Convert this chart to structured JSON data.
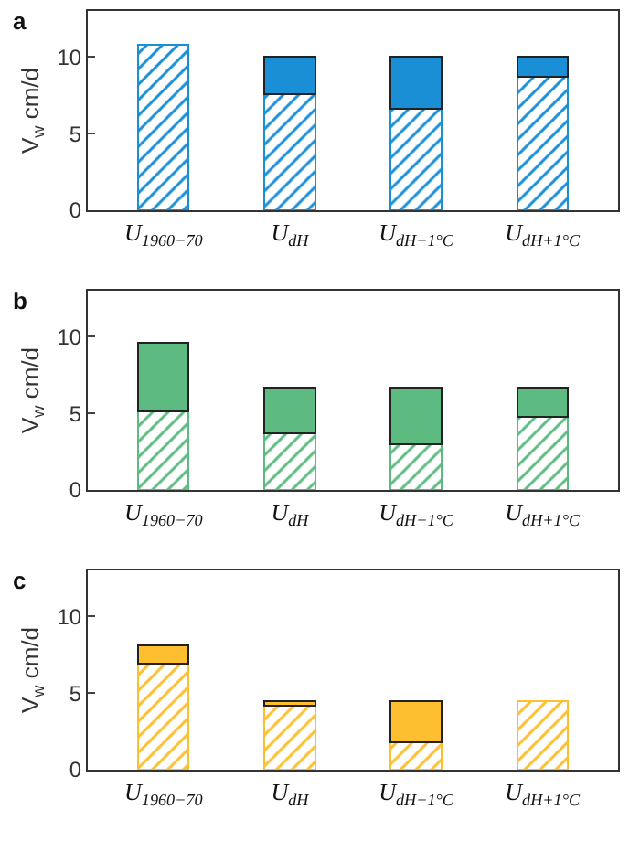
{
  "chart_data": [
    {
      "type": "bar",
      "title": "a",
      "ylabel": "V$_{w}$ cm/d",
      "categories": [
        "U$_{1960−70}$",
        "U$_{dH}$",
        "U$_{dH−1°C}$",
        "U$_{dH+1°C}$"
      ],
      "stacked": true,
      "ylim": [
        0,
        13
      ],
      "yticks": [
        0,
        5,
        10
      ],
      "grid": false,
      "series": [
        {
          "color": "#1a8fd6",
          "values": [
            10.8,
            7.6,
            6.6,
            8.7
          ]
        },
        {
          "color": "#1a8fd6",
          "values": [
            null,
            2.4,
            3.4,
            1.3
          ]
        }
      ]
    },
    {
      "type": "bar",
      "title": "b",
      "ylabel": "V$_{w}$ cm/d",
      "categories": [
        "U$_{1960−70}$",
        "U$_{dH}$",
        "U$_{dH−1°C}$",
        "U$_{dH+1°C}$"
      ],
      "stacked": true,
      "ylim": [
        0,
        13
      ],
      "yticks": [
        0,
        5,
        10
      ],
      "grid": false,
      "series": [
        {
          "color": "#5dbb82",
          "values": [
            5.1,
            3.7,
            3.0,
            4.8
          ]
        },
        {
          "color": "#5dbb82",
          "values": [
            4.5,
            3.0,
            3.7,
            1.9
          ]
        }
      ]
    },
    {
      "type": "bar",
      "title": "c",
      "ylabel": "V$_{w}$ cm/d",
      "categories": [
        "U$_{1960−70}$",
        "U$_{dH}$",
        "U$_{dH−1°C}$",
        "U$_{dH+1°C}$"
      ],
      "stacked": true,
      "ylim": [
        0,
        13
      ],
      "yticks": [
        0,
        5,
        10
      ],
      "grid": false,
      "series": [
        {
          "color": "#fdbf2f",
          "values": [
            6.9,
            4.2,
            1.8,
            4.5
          ]
        },
        {
          "color": "#fdbf2f",
          "values": [
            1.2,
            0.3,
            2.7,
            null
          ]
        }
      ]
    }
  ]
}
